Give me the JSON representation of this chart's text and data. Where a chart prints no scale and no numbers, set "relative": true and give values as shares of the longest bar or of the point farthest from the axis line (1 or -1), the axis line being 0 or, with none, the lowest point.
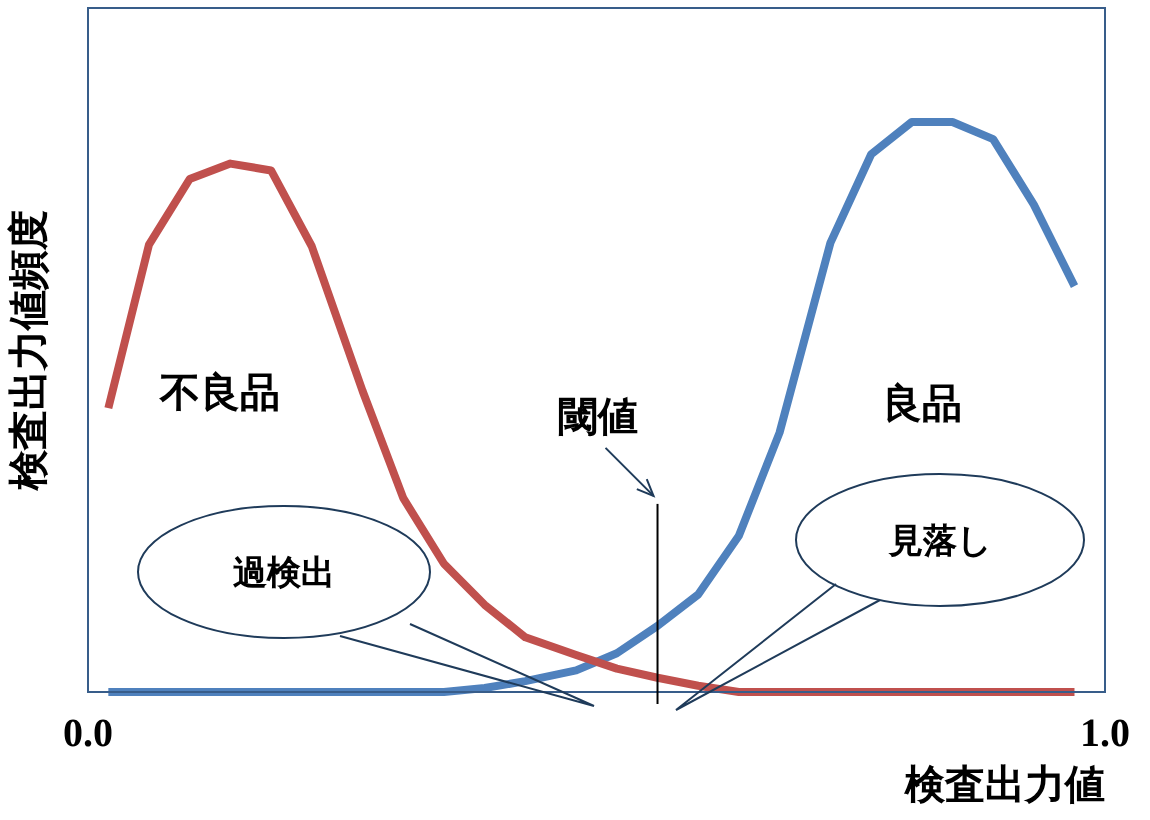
{
  "chart_data": {
    "type": "line",
    "relative": true,
    "xlabel": "検査出力値",
    "ylabel": "検査出力値頻度",
    "xlim": [
      0,
      1
    ],
    "xticks": [
      {
        "value": 0,
        "label": "0.0"
      },
      {
        "value": 1,
        "label": "1.0"
      }
    ],
    "x": [
      0.02,
      0.06,
      0.1,
      0.14,
      0.18,
      0.22,
      0.27,
      0.31,
      0.35,
      0.39,
      0.43,
      0.48,
      0.52,
      0.56,
      0.6,
      0.64,
      0.68,
      0.73,
      0.77,
      0.81,
      0.85,
      0.89,
      0.93,
      0.97
    ],
    "series": [
      {
        "name": "不良品",
        "color": "#c0504d",
        "values": [
          0.498,
          0.785,
          0.9,
          0.927,
          0.915,
          0.782,
          0.528,
          0.34,
          0.225,
          0.153,
          0.096,
          0.065,
          0.041,
          0.025,
          0.011,
          0,
          0,
          0,
          0,
          0,
          0,
          0,
          0,
          0
        ]
      },
      {
        "name": "良品",
        "color": "#4f81bd",
        "values": [
          0,
          0,
          0,
          0,
          0,
          0,
          0,
          0,
          0,
          0.007,
          0.019,
          0.038,
          0.068,
          0.116,
          0.171,
          0.274,
          0.455,
          0.788,
          0.943,
          1,
          1,
          0.97,
          0.855,
          0.712
        ]
      }
    ],
    "ref_lines": [
      {
        "axis": "x",
        "value": 0.56,
        "label": "閾値"
      }
    ],
    "annotations": [
      "過検出",
      "見落し"
    ],
    "grid": false,
    "legend": false
  }
}
